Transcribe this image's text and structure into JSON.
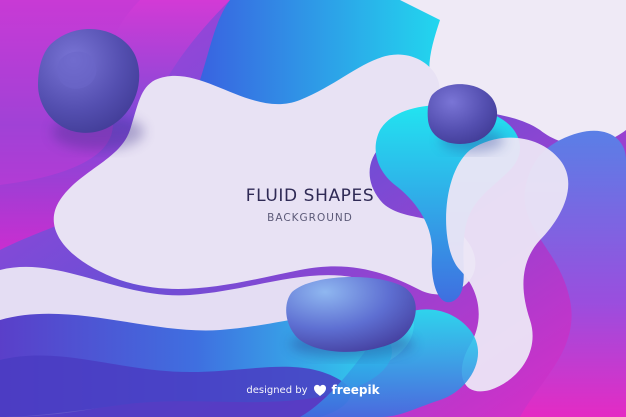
{
  "title": "FLUID SHAPES",
  "subtitle": "BACKGROUND",
  "credit": {
    "text": "designed by",
    "brand": "freepik",
    "icon": "freepik-logo-icon"
  },
  "colors": {
    "magenta": "#e22bc6",
    "purple": "#6b3fc8",
    "blue": "#3f7de0",
    "cyan": "#1fe6f0",
    "lavender": "#e6e0f3",
    "stone": "#5b55b4"
  }
}
